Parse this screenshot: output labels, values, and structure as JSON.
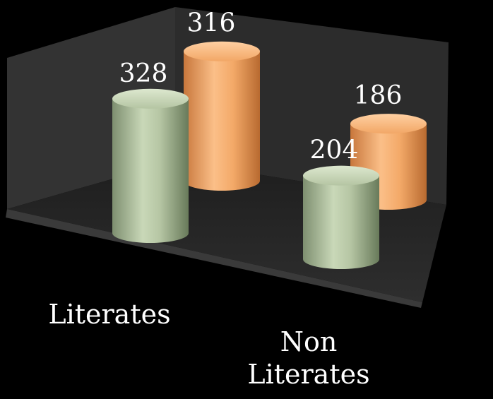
{
  "chart_data": {
    "type": "bar",
    "style": "3d-cylinder",
    "categories": [
      [
        "Literates"
      ],
      [
        "Non",
        "Literates"
      ]
    ],
    "series": [
      {
        "values": [
          328,
          204
        ],
        "color": "#b9c9a8"
      },
      {
        "values": [
          316,
          186
        ],
        "color": "#f3a968"
      }
    ],
    "colors": {
      "background": "#000000",
      "plot_walls": "#2b2b2b",
      "label_text": "#ffffff"
    },
    "legend": "none",
    "grid": false
  }
}
